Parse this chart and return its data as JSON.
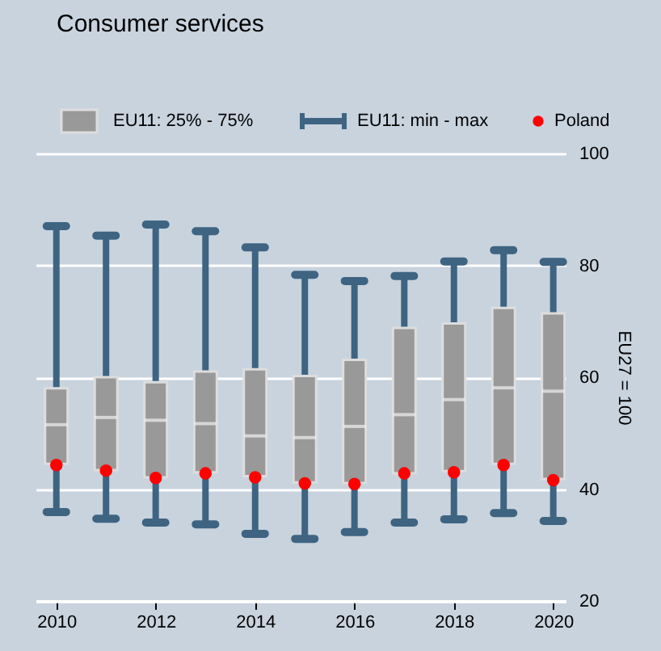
{
  "chart_data": {
    "type": "box",
    "title": "Consumer services",
    "ylabel": "EU27 = 100",
    "x": [
      "2010",
      "2011",
      "2012",
      "2013",
      "2014",
      "2015",
      "2016",
      "2017",
      "2018",
      "2019",
      "2020"
    ],
    "xlim": [
      "2009-08",
      "2020-04"
    ],
    "xticks": [
      "2010",
      "2012",
      "2014",
      "2016",
      "2018",
      "2020"
    ],
    "ylim": [
      20,
      100
    ],
    "yticks": [
      20,
      40,
      60,
      80,
      100
    ],
    "grid": "y",
    "legend": "top",
    "annotations": [
      "EU11: min - max"
    ],
    "series": [
      {
        "name": "EU11: 25% - 75%",
        "color": "#999999",
        "boxes": [
          {
            "low": 35.9,
            "q1": 44.5,
            "median": 51.5,
            "q3": 58.0,
            "high": 87.0
          },
          {
            "low": 34.7,
            "q1": 43.4,
            "median": 52.8,
            "q3": 60.0,
            "high": 85.3
          },
          {
            "low": 34.0,
            "q1": 42.1,
            "median": 52.3,
            "q3": 59.1,
            "high": 87.3
          },
          {
            "low": 33.7,
            "q1": 43.0,
            "median": 51.7,
            "q3": 61.0,
            "high": 86.1
          },
          {
            "low": 32.0,
            "q1": 42.3,
            "median": 49.5,
            "q3": 61.4,
            "high": 83.2
          },
          {
            "low": 31.1,
            "q1": 41.2,
            "median": 49.2,
            "q3": 60.2,
            "high": 78.3
          },
          {
            "low": 32.3,
            "q1": 41.1,
            "median": 51.2,
            "q3": 63.1,
            "high": 77.2
          },
          {
            "low": 34.0,
            "q1": 42.8,
            "median": 53.3,
            "q3": 68.8,
            "high": 78.1
          },
          {
            "low": 34.6,
            "q1": 43.2,
            "median": 56.0,
            "q3": 69.6,
            "high": 80.7
          },
          {
            "low": 35.7,
            "q1": 44.5,
            "median": 58.1,
            "q3": 72.4,
            "high": 82.7
          },
          {
            "low": 34.3,
            "q1": 41.8,
            "median": 57.5,
            "q3": 71.4,
            "high": 80.6
          }
        ]
      },
      {
        "name": "Poland",
        "type": "scatter",
        "color": "#ff0000",
        "marker": "circle",
        "values": [
          44.3,
          43.3,
          42.0,
          42.8,
          42.1,
          41.0,
          40.9,
          42.8,
          43.0,
          44.3,
          41.6
        ]
      }
    ]
  }
}
